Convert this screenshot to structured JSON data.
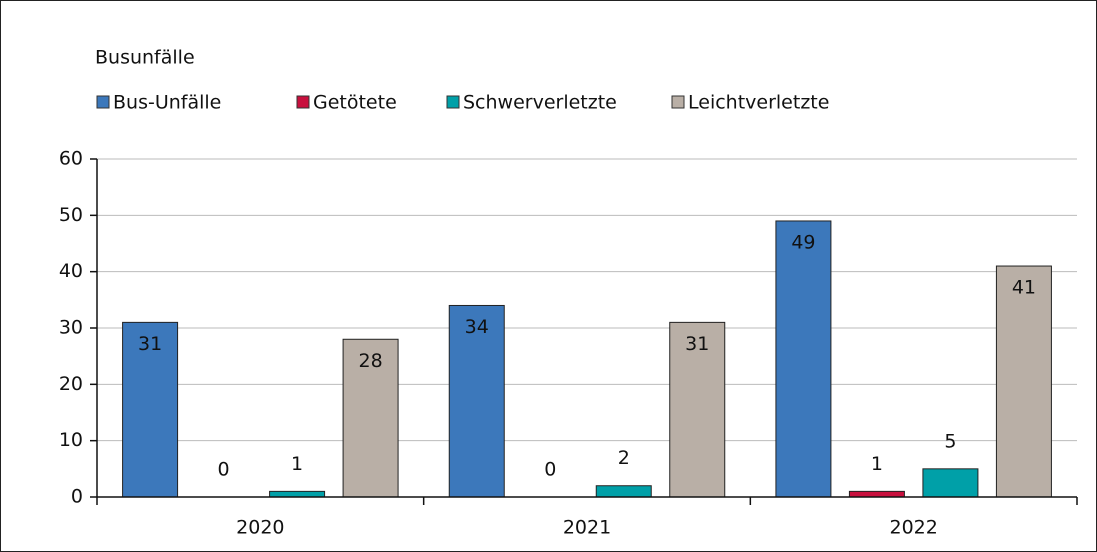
{
  "chart_data": {
    "type": "bar",
    "title": "Busunfälle",
    "categories": [
      "2020",
      "2021",
      "2022"
    ],
    "series": [
      {
        "name": "Bus-Unfälle",
        "color": "#3c78bb",
        "values": [
          31,
          34,
          49
        ]
      },
      {
        "name": "Getötete",
        "color": "#c8103e",
        "values": [
          0,
          0,
          1
        ]
      },
      {
        "name": "Schwerverletzte",
        "color": "#00a0a8",
        "values": [
          1,
          2,
          5
        ]
      },
      {
        "name": "Leichtverletzte",
        "color": "#b9afa6",
        "values": [
          28,
          31,
          41
        ]
      }
    ],
    "ylim": [
      0,
      60
    ],
    "yticks": [
      0,
      10,
      20,
      30,
      40,
      50,
      60
    ],
    "grid": true,
    "legend": "top"
  }
}
